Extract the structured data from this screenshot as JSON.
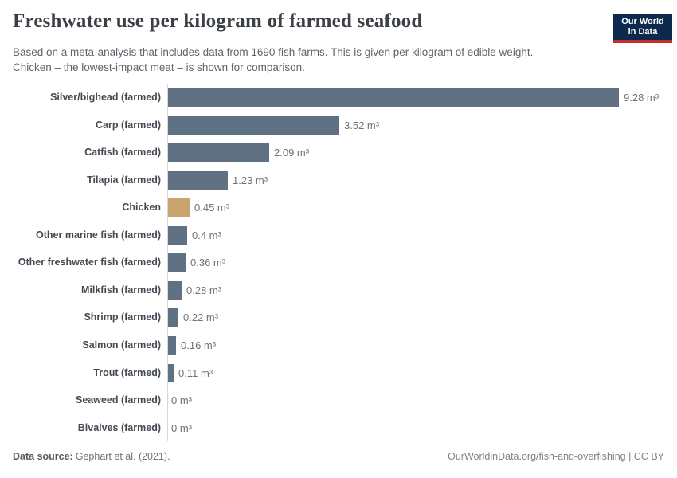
{
  "header": {
    "title": "Freshwater use per kilogram of farmed seafood",
    "subtitle_lines": [
      "Based on a meta-analysis that includes data from 1690 fish farms. This is given per kilogram of edible weight.",
      "Chicken – the lowest-impact meat – is shown for comparison."
    ],
    "logo": {
      "line1": "Our World",
      "line2": "in Data",
      "bg_color": "#0d2a4e",
      "accent_color": "#c62b2b"
    }
  },
  "chart_data": {
    "type": "bar",
    "orientation": "horizontal",
    "title": "Freshwater use per kilogram of farmed seafood",
    "unit": "m³",
    "xlim": [
      0,
      9.28
    ],
    "grid": false,
    "legend": "none",
    "categories": [
      "Silver/bighead (farmed)",
      "Carp (farmed)",
      "Catfish (farmed)",
      "Tilapia (farmed)",
      "Chicken",
      "Other marine fish (farmed)",
      "Other freshwater fish (farmed)",
      "Milkfish (farmed)",
      "Shrimp (farmed)",
      "Salmon (farmed)",
      "Trout (farmed)",
      "Seaweed (farmed)",
      "Bivalves (farmed)"
    ],
    "values": [
      9.28,
      3.52,
      2.09,
      1.23,
      0.45,
      0.4,
      0.36,
      0.28,
      0.22,
      0.16,
      0.11,
      0,
      0
    ],
    "value_labels": [
      "9.28 m³",
      "3.52 m³",
      "2.09 m³",
      "1.23 m³",
      "0.45 m³",
      "0.4 m³",
      "0.36 m³",
      "0.28 m³",
      "0.22 m³",
      "0.16 m³",
      "0.11 m³",
      "0 m³",
      "0 m³"
    ],
    "bar_colors": [
      "#5f7183",
      "#5f7183",
      "#5f7183",
      "#5f7183",
      "#c9a46f",
      "#5f7183",
      "#5f7183",
      "#5f7183",
      "#5f7183",
      "#5f7183",
      "#5f7183",
      "#5f7183",
      "#5f7183"
    ],
    "axis_color": "#d7d9db"
  },
  "footer": {
    "source_label": "Data source:",
    "source_text": "Gephart et al. (2021).",
    "attribution": "OurWorldinData.org/fish-and-overfishing | CC BY"
  }
}
